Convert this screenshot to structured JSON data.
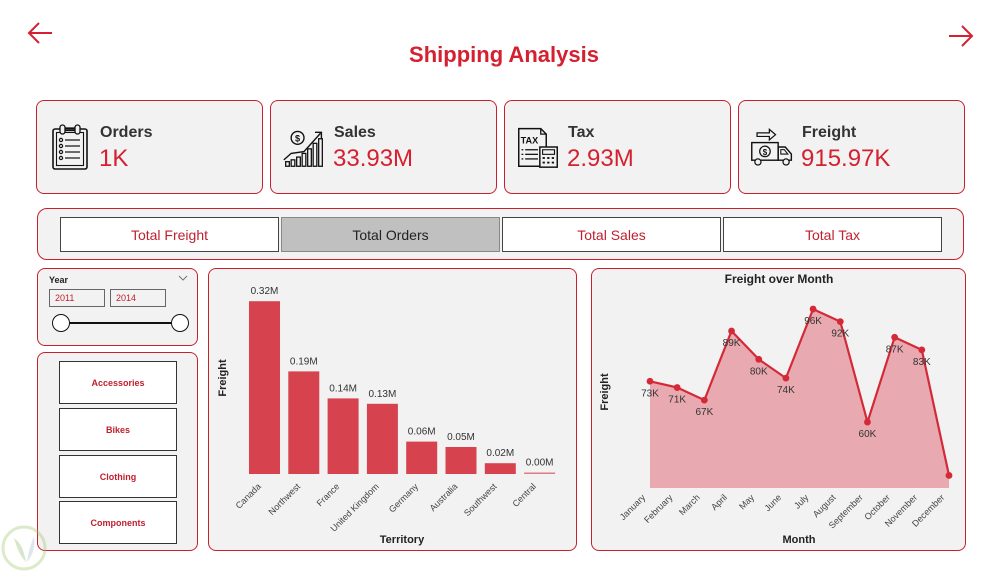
{
  "header": {
    "title": "Shipping Analysis",
    "back_icon": "arrow-left-icon",
    "forward_icon": "arrow-right-icon"
  },
  "icons": {
    "dollar_glyph": "$",
    "tax_glyph": "TAX"
  },
  "kpis": [
    {
      "label": "Orders",
      "value": "1K",
      "icon": "clipboard-list-icon"
    },
    {
      "label": "Sales",
      "value": "33.93M",
      "icon": "sales-growth-icon"
    },
    {
      "label": "Tax",
      "value": "2.93M",
      "icon": "tax-calculator-icon"
    },
    {
      "label": "Freight",
      "value": "915.97K",
      "icon": "delivery-truck-icon"
    }
  ],
  "measure_tabs": {
    "items": [
      {
        "label": "Total Freight",
        "active": false
      },
      {
        "label": "Total Orders",
        "active": true
      },
      {
        "label": "Total Sales",
        "active": false
      },
      {
        "label": "Total Tax",
        "active": false
      }
    ]
  },
  "year_slicer": {
    "label": "Year",
    "start": "2011",
    "end": "2014",
    "range": [
      2011,
      2014
    ],
    "selected": [
      2011,
      2014
    ]
  },
  "category_slicer": {
    "items": [
      "Accessories",
      "Bikes",
      "Clothing",
      "Components"
    ]
  },
  "colors": {
    "accent": "#d42030",
    "panel_border": "#c8202e",
    "panel_bg": "#f2f2f2",
    "active_tab_bg": "#c0c0c0",
    "bar": "#d6434f",
    "bar_zero": "#e07a83",
    "area": "#e8aab0",
    "line": "#d42a38"
  },
  "chart_data": [
    {
      "type": "bar",
      "title": "",
      "xlabel": "Territory",
      "ylabel": "Freight",
      "categories": [
        "Canada",
        "Northwest",
        "France",
        "United Kingdom",
        "Germany",
        "Australia",
        "Southwest",
        "Central"
      ],
      "values": [
        0.32,
        0.19,
        0.14,
        0.13,
        0.06,
        0.05,
        0.02,
        0.0
      ],
      "unit": "M",
      "data_labels": [
        "0.32M",
        "0.19M",
        "0.14M",
        "0.13M",
        "0.06M",
        "0.05M",
        "0.02M",
        "0.00M"
      ],
      "ylim": [
        0,
        0.35
      ],
      "grid": false,
      "legend": "none"
    },
    {
      "type": "area",
      "title": "Freight over Month",
      "xlabel": "Month",
      "ylabel": "Freight",
      "categories": [
        "January",
        "February",
        "March",
        "April",
        "May",
        "June",
        "July",
        "August",
        "September",
        "October",
        "November",
        "December"
      ],
      "values": [
        73,
        71,
        67,
        89,
        80,
        74,
        96,
        92,
        60,
        87,
        83,
        43
      ],
      "unit": "K",
      "data_labels": [
        "73K",
        "71K",
        "67K",
        "89K",
        "80K",
        "74K",
        "96K",
        "92K",
        "60K",
        "87K",
        "83K",
        ""
      ],
      "ylim": [
        39,
        105
      ],
      "grid": false,
      "legend": "none"
    }
  ]
}
